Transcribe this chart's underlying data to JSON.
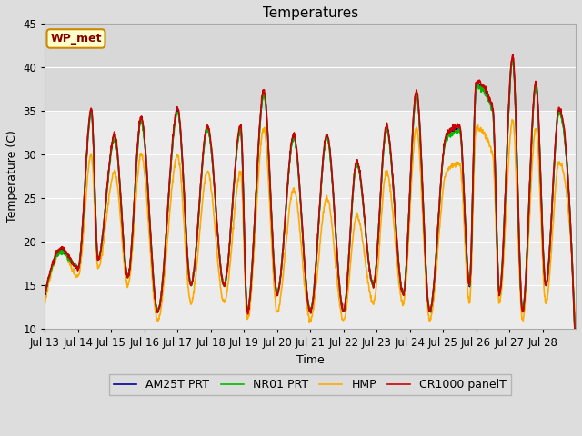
{
  "title": "Temperatures",
  "xlabel": "Time",
  "ylabel": "Temperature (C)",
  "ylim": [
    10,
    45
  ],
  "xlim_start": 0,
  "xlim_end": 16,
  "xtick_labels": [
    "Jul 13",
    "Jul 14",
    "Jul 15",
    "Jul 16",
    "Jul 17",
    "Jul 18",
    "Jul 19",
    "Jul 20",
    "Jul 21",
    "Jul 22",
    "Jul 23",
    "Jul 24",
    "Jul 25",
    "Jul 26",
    "Jul 27",
    "Jul 28"
  ],
  "legend_labels": [
    "CR1000 panelT",
    "HMP",
    "NR01 PRT",
    "AM25T PRT"
  ],
  "line_colors": [
    "#cc0000",
    "#ffaa00",
    "#00bb00",
    "#000099"
  ],
  "annotation_text": "WP_met",
  "annotation_bg": "#ffffcc",
  "annotation_border": "#cc8800",
  "shaded_ymin": 35,
  "shaded_ymax": 45,
  "background_color": "#dddddd",
  "plot_bg": "#ebebeb",
  "shaded_color": "#d8d8d8",
  "grid_color": "#ffffff",
  "title_fontsize": 11,
  "axis_fontsize": 9,
  "legend_fontsize": 9,
  "yticks": [
    10,
    15,
    20,
    25,
    30,
    35,
    40,
    45
  ],
  "peak_days": [
    0.5,
    1.4,
    2.1,
    2.9,
    4.0,
    4.9,
    5.9,
    6.6,
    7.5,
    8.5,
    9.4,
    10.3,
    11.2,
    12.1,
    12.5,
    13.0,
    13.5,
    14.1,
    14.8,
    15.5
  ],
  "trough_days": [
    0.0,
    1.0,
    1.6,
    2.5,
    3.4,
    4.4,
    5.4,
    6.1,
    7.0,
    8.0,
    9.0,
    9.9,
    10.8,
    11.6,
    12.8,
    13.7,
    14.4,
    15.1,
    15.9
  ],
  "peak_vals_rb": [
    19,
    35,
    32,
    34,
    35,
    33,
    33,
    37,
    32,
    32,
    29,
    33,
    37,
    32,
    33,
    38,
    35,
    41,
    38,
    35
  ],
  "peak_vals_o": [
    19,
    30,
    28,
    30,
    30,
    28,
    28,
    33,
    26,
    25,
    23,
    28,
    33,
    28,
    29,
    33,
    30,
    34,
    33,
    29
  ],
  "trough_vals_rb": [
    14,
    17,
    18,
    16,
    12,
    15,
    15,
    12,
    14,
    12,
    12,
    15,
    14,
    12,
    15,
    14,
    12,
    15,
    17
  ],
  "trough_vals_o": [
    13,
    16,
    17,
    15,
    11,
    13,
    13,
    11,
    12,
    11,
    11,
    13,
    13,
    11,
    13,
    13,
    11,
    13,
    17
  ]
}
